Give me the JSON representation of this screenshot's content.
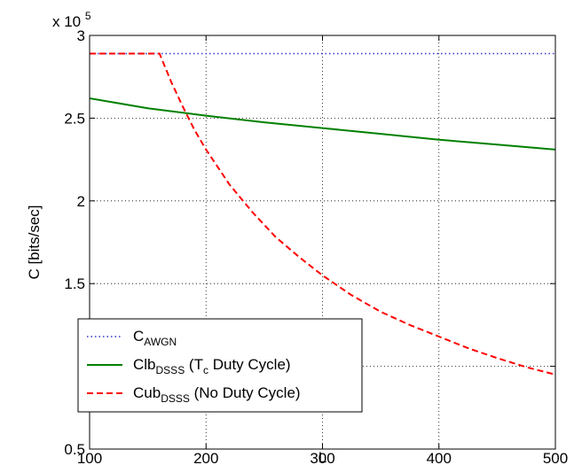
{
  "chart_data": {
    "type": "line",
    "title": "",
    "xlabel": "L",
    "ylabel": "C [bits/sec]",
    "xlim": [
      100,
      500
    ],
    "ylim": [
      0.5,
      3
    ],
    "y_multiplier_label": "x 10",
    "y_multiplier_exponent": "5",
    "xticks": [
      "100",
      "200",
      "300",
      "400",
      "500"
    ],
    "yticks": [
      "0.5",
      "1",
      "1.5",
      "2",
      "2.5",
      "3"
    ],
    "grid": true,
    "legend_position": "bottom-left",
    "series": [
      {
        "name": "C",
        "name_subscript": "AWGN",
        "color": "#3333cc",
        "style": "dotted",
        "x": [
          100,
          500
        ],
        "y": [
          2.89,
          2.89
        ]
      },
      {
        "name": "Clb",
        "name_subscript": "DSSS",
        "name_rest_1": " (T",
        "name_rest_sub": "c",
        "name_rest_2": " Duty Cycle)",
        "color": "#008000",
        "style": "solid",
        "x": [
          100,
          150,
          200,
          250,
          300,
          350,
          400,
          450,
          500
        ],
        "y": [
          2.62,
          2.56,
          2.515,
          2.475,
          2.44,
          2.405,
          2.37,
          2.34,
          2.31
        ]
      },
      {
        "name": "Cub",
        "name_subscript": "DSSS",
        "name_rest_1": " (No Duty Cycle)",
        "color": "#ff0000",
        "style": "dashed",
        "x": [
          100,
          160,
          170,
          180,
          190,
          200,
          220,
          240,
          260,
          280,
          300,
          325,
          350,
          375,
          400,
          425,
          450,
          475,
          500
        ],
        "y": [
          2.89,
          2.89,
          2.72,
          2.57,
          2.43,
          2.31,
          2.1,
          1.93,
          1.78,
          1.66,
          1.55,
          1.43,
          1.33,
          1.25,
          1.18,
          1.11,
          1.05,
          0.995,
          0.95
        ]
      }
    ]
  }
}
